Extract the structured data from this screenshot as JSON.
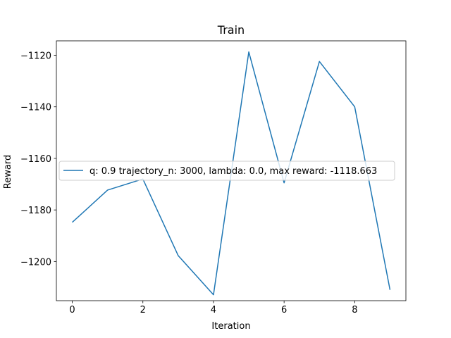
{
  "chart_data": {
    "type": "line",
    "title": "Train",
    "xlabel": "Iteration",
    "ylabel": "Reward",
    "xlim": [
      -0.45,
      9.45
    ],
    "ylim": [
      -1215.2,
      -1114.4
    ],
    "xticks": [
      0,
      2,
      4,
      6,
      8
    ],
    "xtick_labels": [
      "0",
      "2",
      "4",
      "6",
      "8"
    ],
    "yticks": [
      -1200,
      -1180,
      -1160,
      -1140,
      -1120
    ],
    "ytick_labels": [
      "−1200",
      "−1180",
      "−1160",
      "−1140",
      "−1120"
    ],
    "grid": false,
    "legend_position": "center-right",
    "series": [
      {
        "name": "q: 0.9 trajectory_n: 3000, lambda: 0.0, max reward: -1118.663",
        "color": "#1f77b4",
        "x": [
          0,
          1,
          2,
          3,
          4,
          5,
          6,
          7,
          8,
          9
        ],
        "y": [
          -1184.8,
          -1172.3,
          -1168.0,
          -1197.7,
          -1212.9,
          -1118.7,
          -1169.5,
          -1122.4,
          -1140.0,
          -1211.0
        ]
      }
    ]
  }
}
